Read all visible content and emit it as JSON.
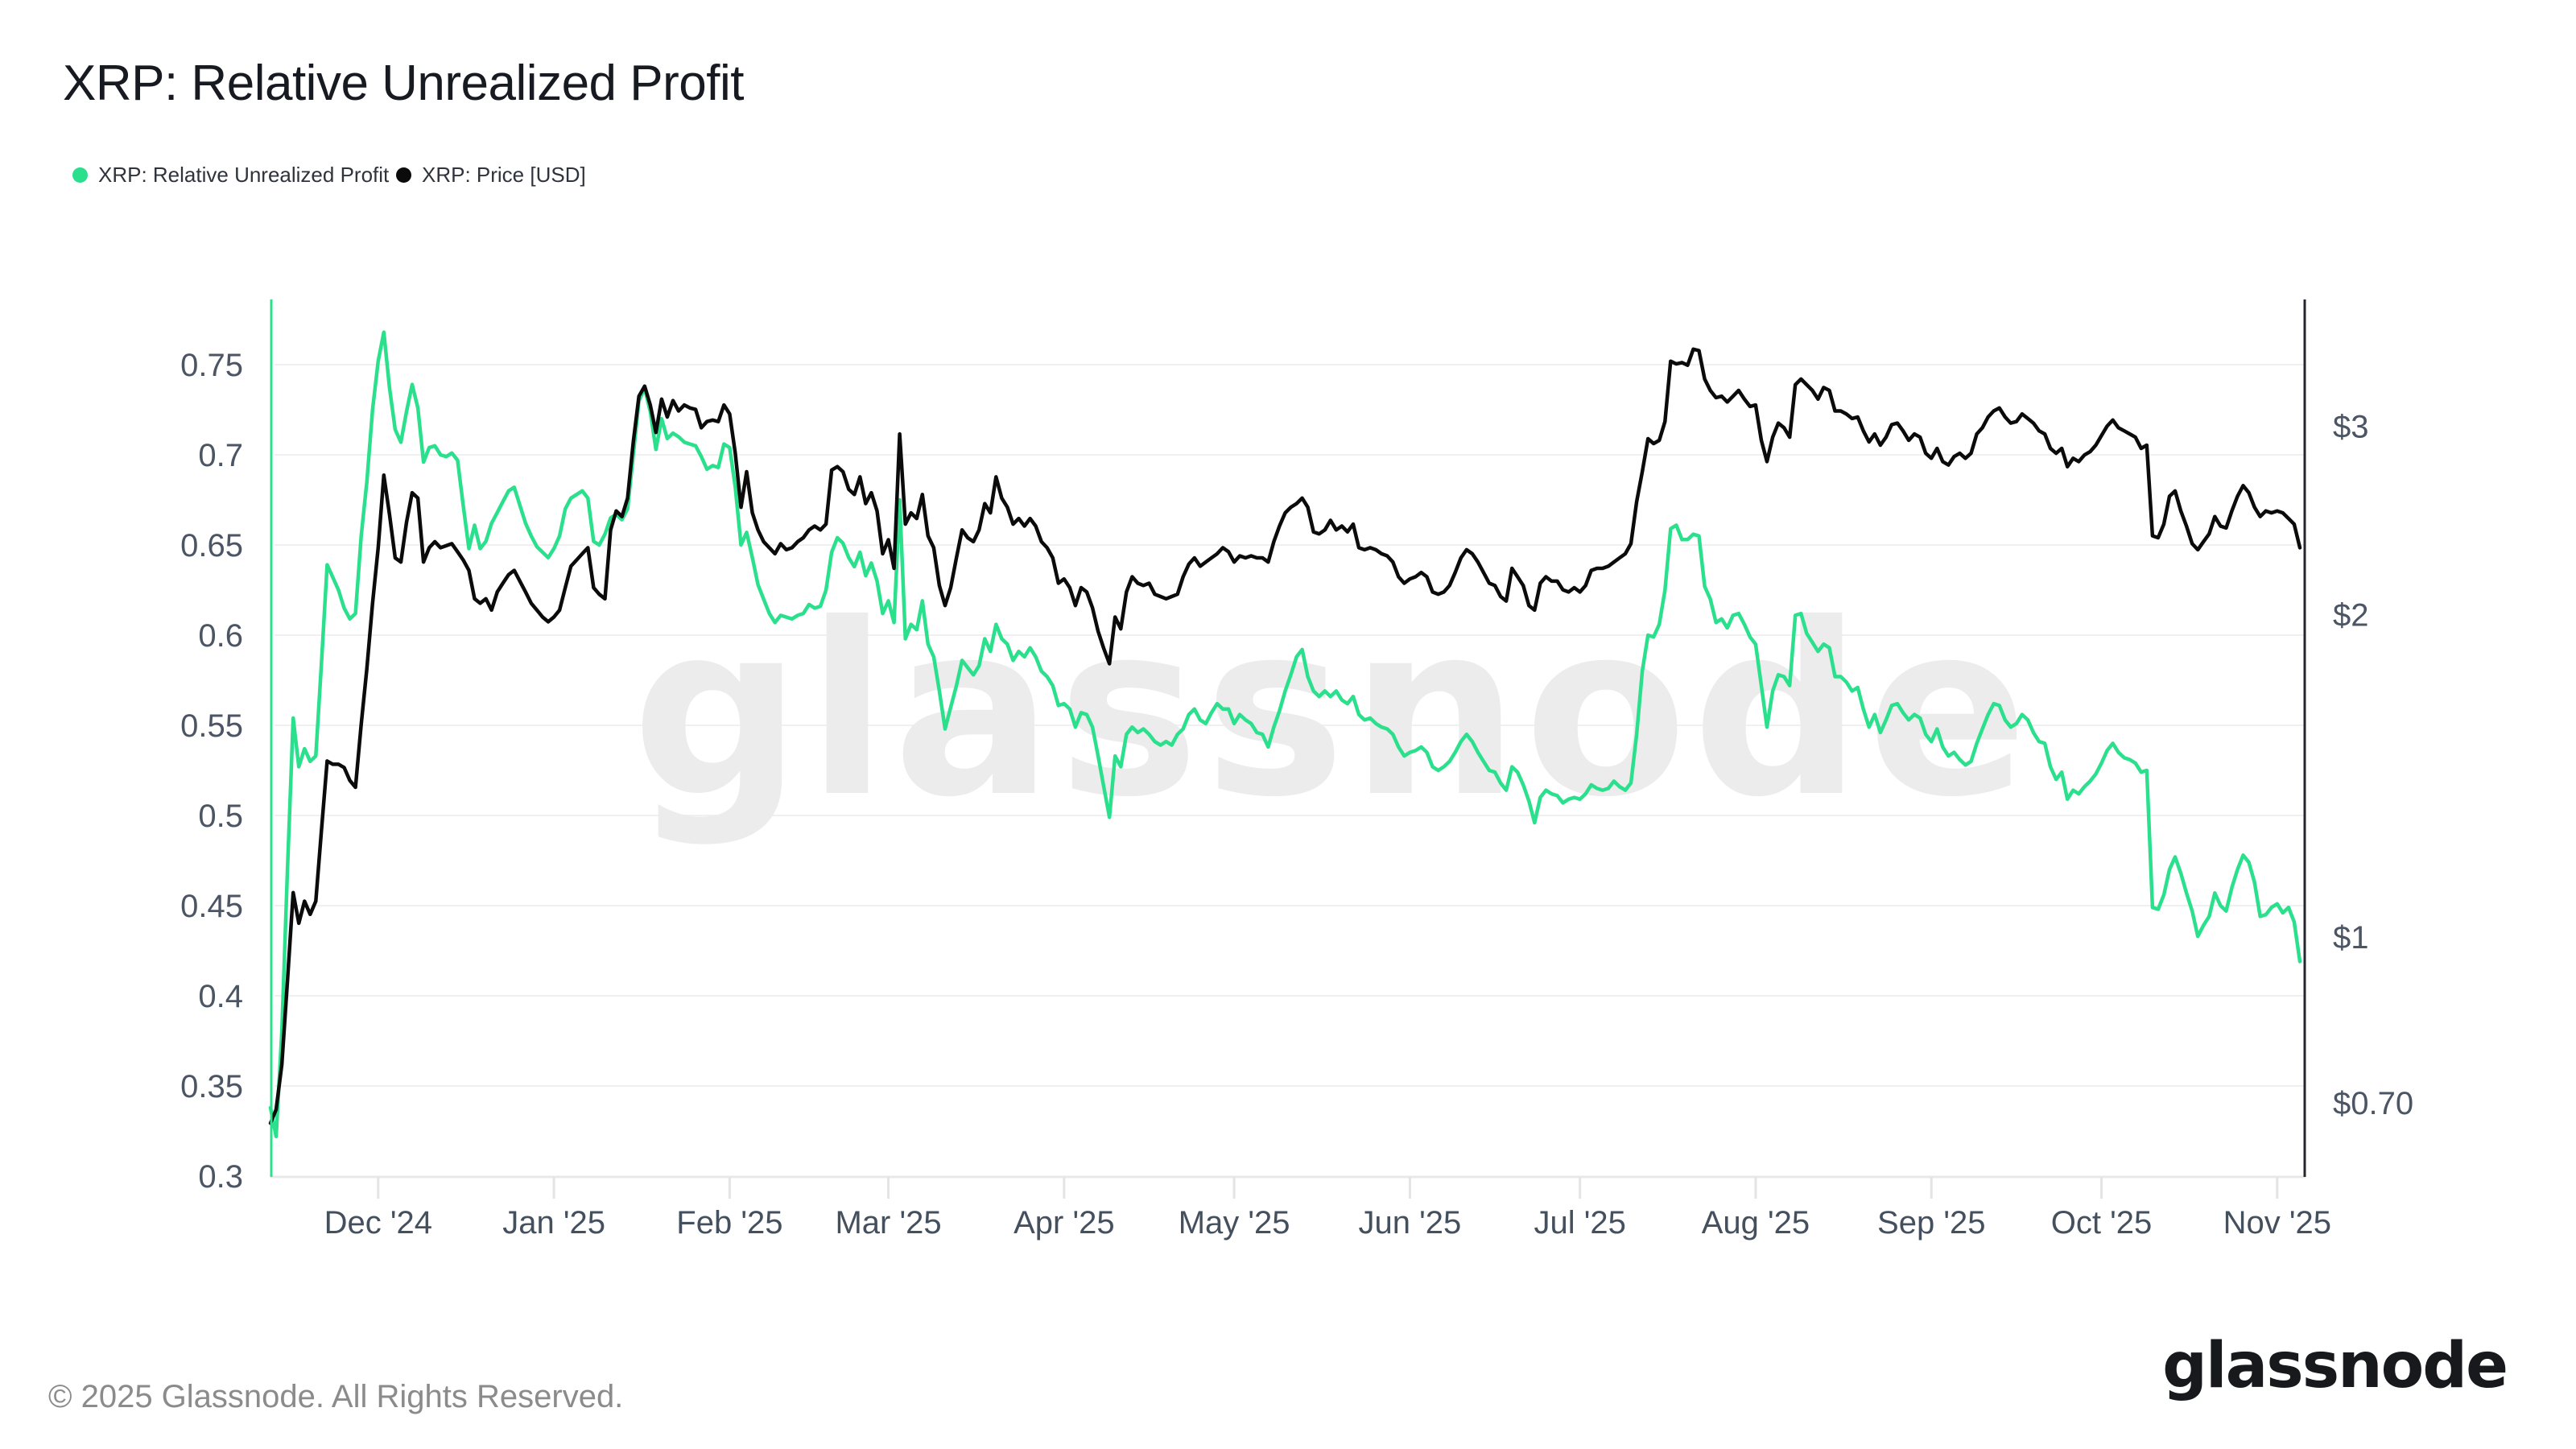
{
  "title": "XRP: Relative Unrealized Profit",
  "legend": [
    {
      "label": "XRP: Relative Unrealized Profit",
      "color": "#2be08c"
    },
    {
      "label": "XRP: Price [USD]",
      "color": "#0b0b0b"
    }
  ],
  "watermark": "glassnode",
  "footer": {
    "copyright": "© 2025 Glassnode. All Rights Reserved.",
    "logo_text": "glassnode"
  },
  "chart_data": {
    "type": "line",
    "title": "XRP: Relative Unrealized Profit",
    "x_start_date": "2024-11-12",
    "x_end_date": "2025-11-05",
    "sampling": "daily",
    "grid": "horizontal",
    "legend_position": "top-left",
    "left_axis": {
      "name": "Relative Unrealized Profit",
      "scale": "linear",
      "tick_labels": [
        "0.75",
        "0.7",
        "0.65",
        "0.6",
        "0.55",
        "0.5",
        "0.45",
        "0.4",
        "0.35",
        "0.3"
      ],
      "tick_values": [
        0.75,
        0.7,
        0.65,
        0.6,
        0.55,
        0.5,
        0.45,
        0.4,
        0.35,
        0.3
      ],
      "axis_line_color": "#2be08c"
    },
    "right_axis": {
      "name": "Price USD",
      "scale": "log",
      "tick_labels": [
        "$3",
        "$2",
        "$1",
        "$0.70"
      ],
      "tick_values": [
        3,
        2,
        1,
        0.7
      ],
      "axis_line_color": "#24272e"
    },
    "x_axis": {
      "tick_labels": [
        "Dec '24",
        "Jan '25",
        "Feb '25",
        "Mar '25",
        "Apr '25",
        "May '25",
        "Jun '25",
        "Jul '25",
        "Aug '25",
        "Sep '25",
        "Oct '25",
        "Nov '25"
      ],
      "tick_dates": [
        "2024-12-01",
        "2025-01-01",
        "2025-02-01",
        "2025-03-01",
        "2025-04-01",
        "2025-05-01",
        "2025-06-01",
        "2025-07-01",
        "2025-08-01",
        "2025-09-01",
        "2025-10-01",
        "2025-11-01"
      ]
    },
    "series": [
      {
        "name": "XRP: Relative Unrealized Profit",
        "axis": "left",
        "color": "#2be08c",
        "values": [
          0.338,
          0.322,
          0.38,
          0.47,
          0.554,
          0.527,
          0.537,
          0.53,
          0.533,
          0.585,
          0.639,
          0.632,
          0.625,
          0.615,
          0.609,
          0.612,
          0.655,
          0.685,
          0.725,
          0.752,
          0.768,
          0.737,
          0.714,
          0.707,
          0.724,
          0.739,
          0.726,
          0.696,
          0.704,
          0.705,
          0.7,
          0.699,
          0.701,
          0.697,
          0.672,
          0.648,
          0.661,
          0.648,
          0.652,
          0.662,
          0.668,
          0.674,
          0.68,
          0.682,
          0.672,
          0.662,
          0.655,
          0.649,
          0.646,
          0.643,
          0.648,
          0.655,
          0.67,
          0.676,
          0.678,
          0.68,
          0.676,
          0.652,
          0.65,
          0.656,
          0.665,
          0.667,
          0.664,
          0.67,
          0.7,
          0.73,
          0.737,
          0.724,
          0.703,
          0.72,
          0.709,
          0.712,
          0.71,
          0.707,
          0.706,
          0.705,
          0.699,
          0.692,
          0.694,
          0.693,
          0.706,
          0.704,
          0.682,
          0.65,
          0.657,
          0.643,
          0.628,
          0.62,
          0.612,
          0.607,
          0.611,
          0.61,
          0.609,
          0.611,
          0.612,
          0.617,
          0.615,
          0.616,
          0.625,
          0.646,
          0.654,
          0.651,
          0.643,
          0.638,
          0.646,
          0.633,
          0.64,
          0.63,
          0.612,
          0.619,
          0.607,
          0.675,
          0.598,
          0.606,
          0.603,
          0.619,
          0.595,
          0.588,
          0.569,
          0.548,
          0.56,
          0.572,
          0.586,
          0.582,
          0.578,
          0.583,
          0.598,
          0.591,
          0.606,
          0.598,
          0.595,
          0.586,
          0.591,
          0.588,
          0.593,
          0.588,
          0.58,
          0.577,
          0.572,
          0.561,
          0.562,
          0.559,
          0.549,
          0.557,
          0.556,
          0.549,
          0.533,
          0.516,
          0.499,
          0.533,
          0.527,
          0.545,
          0.549,
          0.546,
          0.548,
          0.545,
          0.541,
          0.539,
          0.541,
          0.539,
          0.545,
          0.548,
          0.556,
          0.559,
          0.553,
          0.551,
          0.557,
          0.562,
          0.559,
          0.559,
          0.551,
          0.556,
          0.553,
          0.551,
          0.546,
          0.545,
          0.538,
          0.549,
          0.558,
          0.569,
          0.578,
          0.588,
          0.592,
          0.577,
          0.569,
          0.566,
          0.569,
          0.566,
          0.569,
          0.564,
          0.562,
          0.566,
          0.556,
          0.553,
          0.554,
          0.551,
          0.549,
          0.548,
          0.545,
          0.538,
          0.533,
          0.535,
          0.536,
          0.538,
          0.535,
          0.527,
          0.525,
          0.527,
          0.53,
          0.535,
          0.541,
          0.545,
          0.541,
          0.535,
          0.53,
          0.525,
          0.524,
          0.518,
          0.514,
          0.527,
          0.524,
          0.517,
          0.508,
          0.496,
          0.51,
          0.514,
          0.512,
          0.511,
          0.507,
          0.509,
          0.51,
          0.509,
          0.512,
          0.517,
          0.515,
          0.514,
          0.515,
          0.519,
          0.516,
          0.514,
          0.518,
          0.545,
          0.58,
          0.6,
          0.599,
          0.606,
          0.625,
          0.659,
          0.661,
          0.653,
          0.653,
          0.656,
          0.655,
          0.627,
          0.62,
          0.607,
          0.609,
          0.604,
          0.611,
          0.612,
          0.606,
          0.599,
          0.595,
          0.572,
          0.549,
          0.569,
          0.578,
          0.577,
          0.572,
          0.611,
          0.612,
          0.601,
          0.596,
          0.591,
          0.595,
          0.593,
          0.577,
          0.577,
          0.574,
          0.569,
          0.571,
          0.559,
          0.549,
          0.556,
          0.546,
          0.553,
          0.561,
          0.562,
          0.557,
          0.553,
          0.556,
          0.554,
          0.545,
          0.541,
          0.548,
          0.538,
          0.533,
          0.535,
          0.531,
          0.528,
          0.53,
          0.54,
          0.548,
          0.556,
          0.562,
          0.561,
          0.553,
          0.549,
          0.551,
          0.556,
          0.553,
          0.546,
          0.541,
          0.54,
          0.527,
          0.52,
          0.524,
          0.509,
          0.514,
          0.512,
          0.516,
          0.519,
          0.523,
          0.529,
          0.536,
          0.54,
          0.535,
          0.532,
          0.531,
          0.529,
          0.524,
          0.525,
          0.449,
          0.448,
          0.456,
          0.47,
          0.477,
          0.468,
          0.457,
          0.447,
          0.433,
          0.439,
          0.444,
          0.457,
          0.45,
          0.447,
          0.46,
          0.47,
          0.478,
          0.474,
          0.463,
          0.444,
          0.445,
          0.449,
          0.451,
          0.446,
          0.449,
          0.441,
          0.419
        ]
      },
      {
        "name": "XRP: Price [USD]",
        "axis": "right",
        "color": "#0b0b0b",
        "values": [
          0.67,
          0.69,
          0.76,
          0.91,
          1.1,
          1.03,
          1.08,
          1.05,
          1.08,
          1.26,
          1.46,
          1.45,
          1.45,
          1.44,
          1.4,
          1.38,
          1.58,
          1.78,
          2.05,
          2.31,
          2.7,
          2.48,
          2.26,
          2.24,
          2.44,
          2.6,
          2.57,
          2.24,
          2.31,
          2.34,
          2.31,
          2.32,
          2.33,
          2.29,
          2.25,
          2.2,
          2.07,
          2.05,
          2.07,
          2.02,
          2.1,
          2.14,
          2.18,
          2.2,
          2.15,
          2.1,
          2.05,
          2.02,
          1.99,
          1.97,
          1.99,
          2.02,
          2.12,
          2.22,
          2.25,
          2.28,
          2.31,
          2.12,
          2.09,
          2.07,
          2.4,
          2.5,
          2.47,
          2.57,
          2.9,
          3.2,
          3.27,
          3.14,
          2.96,
          3.18,
          3.06,
          3.17,
          3.1,
          3.14,
          3.12,
          3.11,
          2.99,
          3.03,
          3.04,
          3.03,
          3.14,
          3.08,
          2.83,
          2.52,
          2.72,
          2.49,
          2.4,
          2.34,
          2.31,
          2.28,
          2.33,
          2.3,
          2.31,
          2.34,
          2.36,
          2.4,
          2.42,
          2.4,
          2.43,
          2.73,
          2.75,
          2.72,
          2.62,
          2.59,
          2.69,
          2.54,
          2.6,
          2.5,
          2.28,
          2.35,
          2.21,
          2.95,
          2.43,
          2.49,
          2.46,
          2.59,
          2.37,
          2.31,
          2.13,
          2.04,
          2.12,
          2.26,
          2.4,
          2.36,
          2.34,
          2.4,
          2.54,
          2.49,
          2.69,
          2.57,
          2.52,
          2.43,
          2.46,
          2.42,
          2.46,
          2.42,
          2.34,
          2.31,
          2.26,
          2.14,
          2.16,
          2.12,
          2.04,
          2.12,
          2.1,
          2.03,
          1.93,
          1.86,
          1.8,
          1.99,
          1.94,
          2.1,
          2.17,
          2.14,
          2.13,
          2.14,
          2.09,
          2.08,
          2.07,
          2.08,
          2.09,
          2.17,
          2.23,
          2.26,
          2.22,
          2.24,
          2.26,
          2.28,
          2.31,
          2.29,
          2.24,
          2.27,
          2.26,
          2.27,
          2.26,
          2.26,
          2.24,
          2.34,
          2.42,
          2.49,
          2.52,
          2.54,
          2.57,
          2.52,
          2.39,
          2.38,
          2.4,
          2.45,
          2.4,
          2.42,
          2.39,
          2.43,
          2.31,
          2.3,
          2.31,
          2.3,
          2.28,
          2.27,
          2.24,
          2.17,
          2.14,
          2.16,
          2.17,
          2.19,
          2.17,
          2.1,
          2.09,
          2.1,
          2.13,
          2.19,
          2.26,
          2.3,
          2.28,
          2.24,
          2.19,
          2.14,
          2.13,
          2.08,
          2.06,
          2.21,
          2.17,
          2.13,
          2.04,
          2.02,
          2.14,
          2.17,
          2.15,
          2.15,
          2.11,
          2.1,
          2.12,
          2.1,
          2.13,
          2.2,
          2.21,
          2.21,
          2.22,
          2.24,
          2.26,
          2.28,
          2.33,
          2.55,
          2.72,
          2.92,
          2.89,
          2.91,
          3.03,
          3.45,
          3.43,
          3.44,
          3.42,
          3.54,
          3.53,
          3.32,
          3.24,
          3.19,
          3.2,
          3.16,
          3.2,
          3.24,
          3.18,
          3.13,
          3.14,
          2.91,
          2.78,
          2.93,
          3.02,
          2.99,
          2.93,
          3.28,
          3.32,
          3.28,
          3.24,
          3.18,
          3.26,
          3.24,
          3.1,
          3.1,
          3.08,
          3.05,
          3.06,
          2.97,
          2.9,
          2.95,
          2.88,
          2.93,
          3.01,
          3.02,
          2.97,
          2.91,
          2.95,
          2.93,
          2.83,
          2.8,
          2.86,
          2.78,
          2.76,
          2.81,
          2.83,
          2.8,
          2.83,
          2.95,
          2.99,
          3.06,
          3.1,
          3.12,
          3.06,
          3.02,
          3.03,
          3.08,
          3.05,
          3.02,
          2.97,
          2.95,
          2.86,
          2.83,
          2.86,
          2.75,
          2.8,
          2.78,
          2.82,
          2.84,
          2.88,
          2.94,
          3.0,
          3.04,
          2.99,
          2.97,
          2.95,
          2.93,
          2.86,
          2.88,
          2.37,
          2.36,
          2.43,
          2.58,
          2.61,
          2.5,
          2.42,
          2.33,
          2.3,
          2.34,
          2.38,
          2.47,
          2.42,
          2.41,
          2.5,
          2.58,
          2.64,
          2.6,
          2.52,
          2.47,
          2.5,
          2.49,
          2.5,
          2.49,
          2.46,
          2.43,
          2.31
        ]
      }
    ]
  }
}
